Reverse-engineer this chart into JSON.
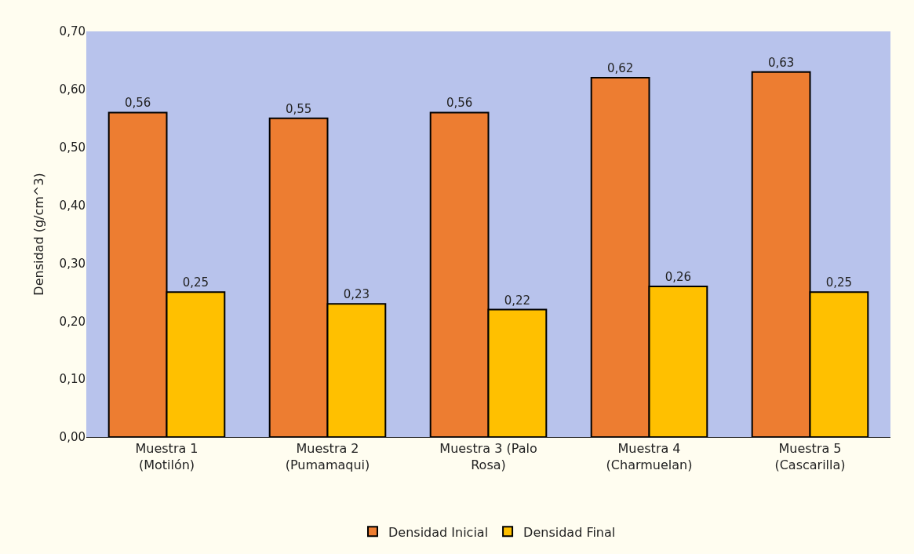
{
  "chart_data": {
    "type": "bar",
    "ylabel": "Densidad (g/cm^3)",
    "categories": [
      "Muestra 1\n(Motilón)",
      "Muestra 2\n(Pumamaqui)",
      "Muestra 3 (Palo\nRosa)",
      "Muestra 4\n(Charmuelan)",
      "Muestra 5\n(Cascarilla)"
    ],
    "series": [
      {
        "name": "Densidad Inicial",
        "color": "#ed7d31",
        "values": [
          0.56,
          0.55,
          0.56,
          0.62,
          0.63
        ],
        "value_labels": [
          "0,56",
          "0,55",
          "0,56",
          "0,62",
          "0,63"
        ]
      },
      {
        "name": "Densidad Final",
        "color": "#ffc000",
        "values": [
          0.25,
          0.23,
          0.22,
          0.26,
          0.25
        ],
        "value_labels": [
          "0,25",
          "0,23",
          "0,22",
          "0,26",
          "0,25"
        ]
      }
    ],
    "ylim": [
      0,
      0.7
    ],
    "yticks": [
      {
        "value": 0,
        "label": "0,00"
      },
      {
        "value": 0.1,
        "label": "0,10"
      },
      {
        "value": 0.2,
        "label": "0,20"
      },
      {
        "value": 0.3,
        "label": "0,30"
      },
      {
        "value": 0.4,
        "label": "0,40"
      },
      {
        "value": 0.5,
        "label": "0,50"
      },
      {
        "value": 0.6,
        "label": "0,60"
      },
      {
        "value": 0.7,
        "label": "0,70"
      }
    ],
    "grid": false,
    "legend": "bottom"
  }
}
